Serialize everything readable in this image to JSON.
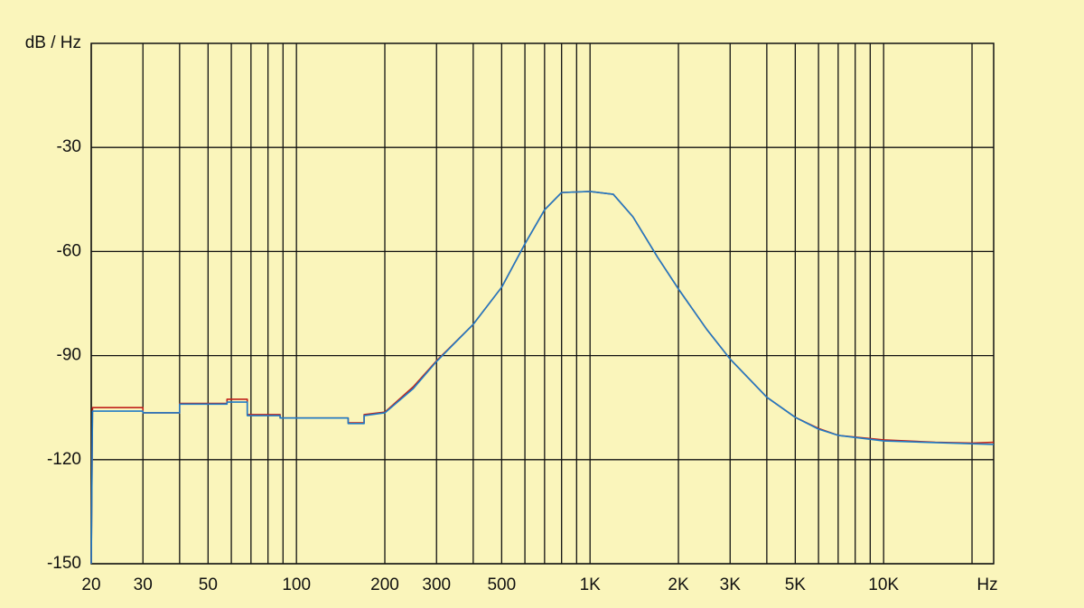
{
  "chart_data": {
    "type": "line",
    "ylabel": "dB / Hz",
    "xlabel": "Hz",
    "xscale": "log",
    "xlim": [
      20,
      23700
    ],
    "xticks": [
      20,
      30,
      50,
      100,
      200,
      300,
      500,
      {
        "value": 1000,
        "label": "1K"
      },
      {
        "value": 2000,
        "label": "2K"
      },
      {
        "value": 3000,
        "label": "3K"
      },
      {
        "value": 5000,
        "label": "5K"
      },
      {
        "value": 10000,
        "label": "10K"
      }
    ],
    "xgrid_minor": [
      40,
      60,
      70,
      80,
      90,
      400,
      600,
      700,
      800,
      900,
      4000,
      6000,
      7000,
      8000,
      9000,
      20000
    ],
    "ylim": [
      -150,
      0
    ],
    "yticks": [
      -150,
      -120,
      -90,
      -60,
      -30
    ],
    "grid": true,
    "x": [
      20,
      20.2,
      30,
      30,
      40,
      40,
      58,
      58,
      68,
      68,
      88,
      88,
      150,
      150,
      170,
      170,
      200,
      250,
      300,
      400,
      500,
      600,
      700,
      800,
      1000,
      1200,
      1400,
      1700,
      2000,
      2500,
      3000,
      4000,
      5000,
      6000,
      7000,
      10000,
      15000,
      20000,
      23700
    ],
    "series": [
      {
        "color": "#c0201a",
        "values": [
          -150,
          -105,
          -105,
          -106.5,
          -106.5,
          -103.8,
          -103.8,
          -102.6,
          -102.6,
          -107,
          -107,
          -108,
          -108,
          -109.4,
          -109.4,
          -107,
          -106.3,
          -99,
          -91.5,
          -81,
          -70.3,
          -57.8,
          -48,
          -43,
          -42.7,
          -43.5,
          -50,
          -61.7,
          -70.8,
          -82.5,
          -91,
          -102,
          -107.8,
          -111,
          -113,
          -114.3,
          -115,
          -115.2,
          -115
        ]
      },
      {
        "color": "#1f7bc6",
        "values": [
          -150,
          -106,
          -106,
          -106.5,
          -106.5,
          -104,
          -104,
          -103.4,
          -103.4,
          -107.3,
          -107.3,
          -108,
          -108,
          -109.6,
          -109.6,
          -107.3,
          -106.5,
          -99.5,
          -91.7,
          -81,
          -70.3,
          -57.8,
          -48,
          -43,
          -42.7,
          -43.5,
          -50,
          -61.7,
          -70.8,
          -82.5,
          -91,
          -102,
          -107.8,
          -111.2,
          -113,
          -114.6,
          -115.1,
          -115.4,
          -115.6
        ]
      }
    ]
  }
}
